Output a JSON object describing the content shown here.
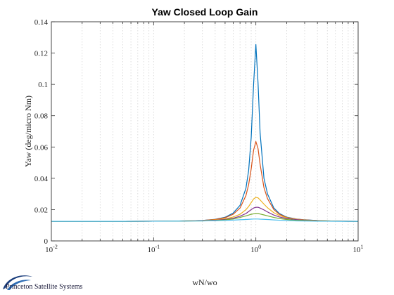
{
  "footer": {
    "text": "Princeton Satellite Systems"
  },
  "chart_data": {
    "type": "line",
    "title": "Yaw Closed Loop Gain",
    "xlabel": "wN/wo",
    "ylabel": "Yaw (deg/micro Nm)",
    "xscale": "log",
    "xlim": [
      0.01,
      10
    ],
    "ylim": [
      0,
      0.14
    ],
    "grid": true,
    "x_ticks": [
      {
        "value": 0.01,
        "base": "10",
        "exp": "-2"
      },
      {
        "value": 0.1,
        "base": "10",
        "exp": "-1"
      },
      {
        "value": 1,
        "base": "10",
        "exp": "0"
      },
      {
        "value": 10,
        "base": "10",
        "exp": "1"
      }
    ],
    "y_ticks": [
      {
        "value": 0,
        "label": "0"
      },
      {
        "value": 0.02,
        "label": "0.02"
      },
      {
        "value": 0.04,
        "label": "0.04"
      },
      {
        "value": 0.06,
        "label": "0.06"
      },
      {
        "value": 0.08,
        "label": "0.08"
      },
      {
        "value": 0.1,
        "label": "0.1"
      },
      {
        "value": 0.12,
        "label": "0.12"
      },
      {
        "value": 0.14,
        "label": "0.14"
      }
    ],
    "x": [
      0.01,
      0.02,
      0.05,
      0.1,
      0.2,
      0.3,
      0.4,
      0.5,
      0.6,
      0.7,
      0.8,
      0.85,
      0.9,
      0.95,
      1.0,
      1.05,
      1.1,
      1.2,
      1.3,
      1.5,
      1.7,
      2.0,
      2.5,
      3.0,
      4.0,
      5.0,
      7.0,
      10.0
    ],
    "series": [
      {
        "color": "#0072BD",
        "values": [
          0.0125,
          0.0125,
          0.0125,
          0.0126,
          0.0128,
          0.0131,
          0.0138,
          0.0151,
          0.0178,
          0.0227,
          0.0337,
          0.045,
          0.066,
          0.1,
          0.1255,
          0.101,
          0.069,
          0.04,
          0.03,
          0.021,
          0.0175,
          0.0152,
          0.014,
          0.0135,
          0.013,
          0.0128,
          0.0126,
          0.0125
        ]
      },
      {
        "color": "#D95319",
        "values": [
          0.0125,
          0.0125,
          0.0125,
          0.0126,
          0.0128,
          0.0131,
          0.0137,
          0.0148,
          0.017,
          0.021,
          0.029,
          0.036,
          0.046,
          0.058,
          0.0635,
          0.059,
          0.049,
          0.034,
          0.027,
          0.02,
          0.017,
          0.015,
          0.0139,
          0.0134,
          0.013,
          0.0128,
          0.0126,
          0.0125
        ]
      },
      {
        "color": "#EDB120",
        "values": [
          0.0125,
          0.0125,
          0.0125,
          0.0126,
          0.0128,
          0.013,
          0.0134,
          0.0141,
          0.0153,
          0.017,
          0.02,
          0.022,
          0.0245,
          0.0268,
          0.0278,
          0.0275,
          0.0262,
          0.0235,
          0.0212,
          0.018,
          0.0162,
          0.0148,
          0.0138,
          0.0133,
          0.0129,
          0.0128,
          0.0126,
          0.0125
        ]
      },
      {
        "color": "#7E2F8E",
        "values": [
          0.0125,
          0.0125,
          0.0125,
          0.0126,
          0.0127,
          0.0129,
          0.0132,
          0.0137,
          0.0145,
          0.0158,
          0.0175,
          0.0188,
          0.02,
          0.021,
          0.0215,
          0.0215,
          0.021,
          0.0198,
          0.0185,
          0.0165,
          0.0153,
          0.0143,
          0.0136,
          0.0132,
          0.0129,
          0.0127,
          0.0126,
          0.0125
        ]
      },
      {
        "color": "#77AC30",
        "values": [
          0.0125,
          0.0125,
          0.0125,
          0.0126,
          0.0127,
          0.0128,
          0.013,
          0.0134,
          0.014,
          0.015,
          0.016,
          0.0165,
          0.017,
          0.0173,
          0.0175,
          0.0175,
          0.0172,
          0.0166,
          0.016,
          0.015,
          0.0143,
          0.0137,
          0.0132,
          0.013,
          0.0128,
          0.0127,
          0.0126,
          0.0125
        ]
      },
      {
        "color": "#4DBEEE",
        "values": [
          0.0125,
          0.0125,
          0.0125,
          0.0126,
          0.0127,
          0.0128,
          0.0129,
          0.0131,
          0.0133,
          0.0135,
          0.0137,
          0.0138,
          0.0139,
          0.014,
          0.014,
          0.014,
          0.0139,
          0.0138,
          0.0137,
          0.0134,
          0.0132,
          0.013,
          0.0128,
          0.0127,
          0.0126,
          0.0126,
          0.0125,
          0.0125
        ]
      }
    ]
  }
}
